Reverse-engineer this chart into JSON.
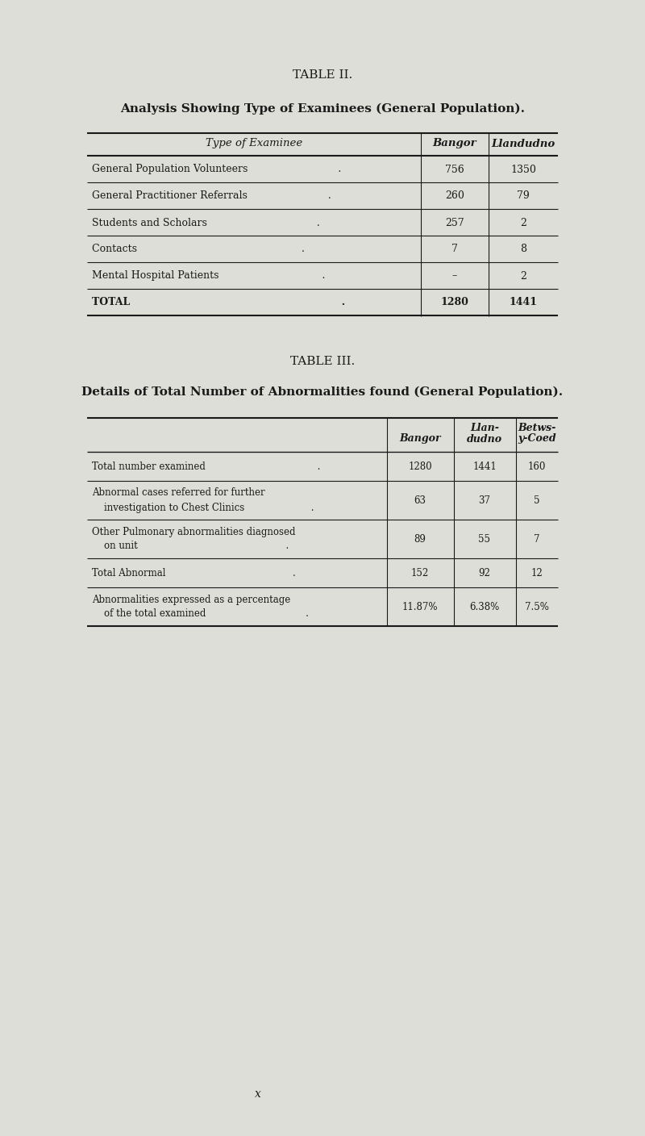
{
  "bg_color": "#deded8",
  "text_color": "#1a1a1a",
  "table2_title": "TABLE II.",
  "table2_subtitle": "Analysis Showing Type of Examinees (General Population).",
  "table2_col_headers": [
    "Type of Examinee",
    "Bangor",
    "Llandudno"
  ],
  "table2_rows": [
    [
      "General Population Volunteers                            .",
      "756",
      "1350"
    ],
    [
      "General Practitioner Referrals                         .",
      "260",
      "79"
    ],
    [
      "Students and Scholars                                  .",
      "257",
      "2"
    ],
    [
      "Contacts                                                   .",
      "7",
      "8"
    ],
    [
      "Mental Hospital Patients                                .",
      "–",
      "2"
    ],
    [
      "TOTAL                                                            .",
      "1280",
      "1441"
    ]
  ],
  "table3_title": "TABLE III.",
  "table3_subtitle": "Details of Total Number of Abnormalities found (General Population).",
  "table3_col_h1": [
    "Llan-",
    "Betws-"
  ],
  "table3_col_h2": [
    "Bangor",
    "dudno",
    "y-Coed"
  ],
  "table3_rows": [
    [
      "Total number examined                                     .",
      "1280",
      "1441",
      "160"
    ],
    [
      "Abnormal cases referred for further",
      "63",
      "37",
      "5",
      "    investigation to Chest Clinics                      ."
    ],
    [
      "Other Pulmonary abnormalities diagnosed",
      "89",
      "55",
      "7",
      "    on unit                                                 ."
    ],
    [
      "Total Abnormal                                          .",
      "152",
      "92",
      "12"
    ],
    [
      "Abnormalities expressed as a percentage",
      "11.87%",
      "6.38%",
      "7.5%",
      "    of the total examined                                 ."
    ]
  ],
  "page_marker": "x"
}
